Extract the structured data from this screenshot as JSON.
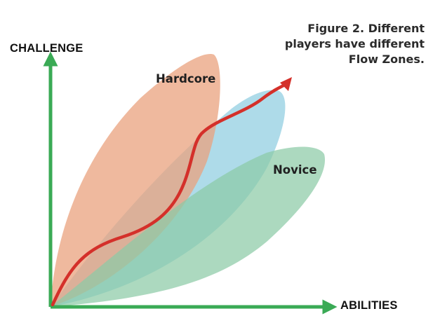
{
  "caption": {
    "lines": [
      "Figure 2. Different",
      "players have different",
      "Flow Zones."
    ]
  },
  "axes": {
    "y_label": "CHALLENGE",
    "x_label": "ABILITIES",
    "color": "#3aaa55"
  },
  "zones": [
    {
      "label": "Hardcore",
      "color": "#e9a27e"
    },
    {
      "label": "",
      "color": "#8fcde0"
    },
    {
      "label": "Novice",
      "color": "#8ccaa6"
    }
  ],
  "flow_curve": {
    "color": "#d4302a"
  }
}
